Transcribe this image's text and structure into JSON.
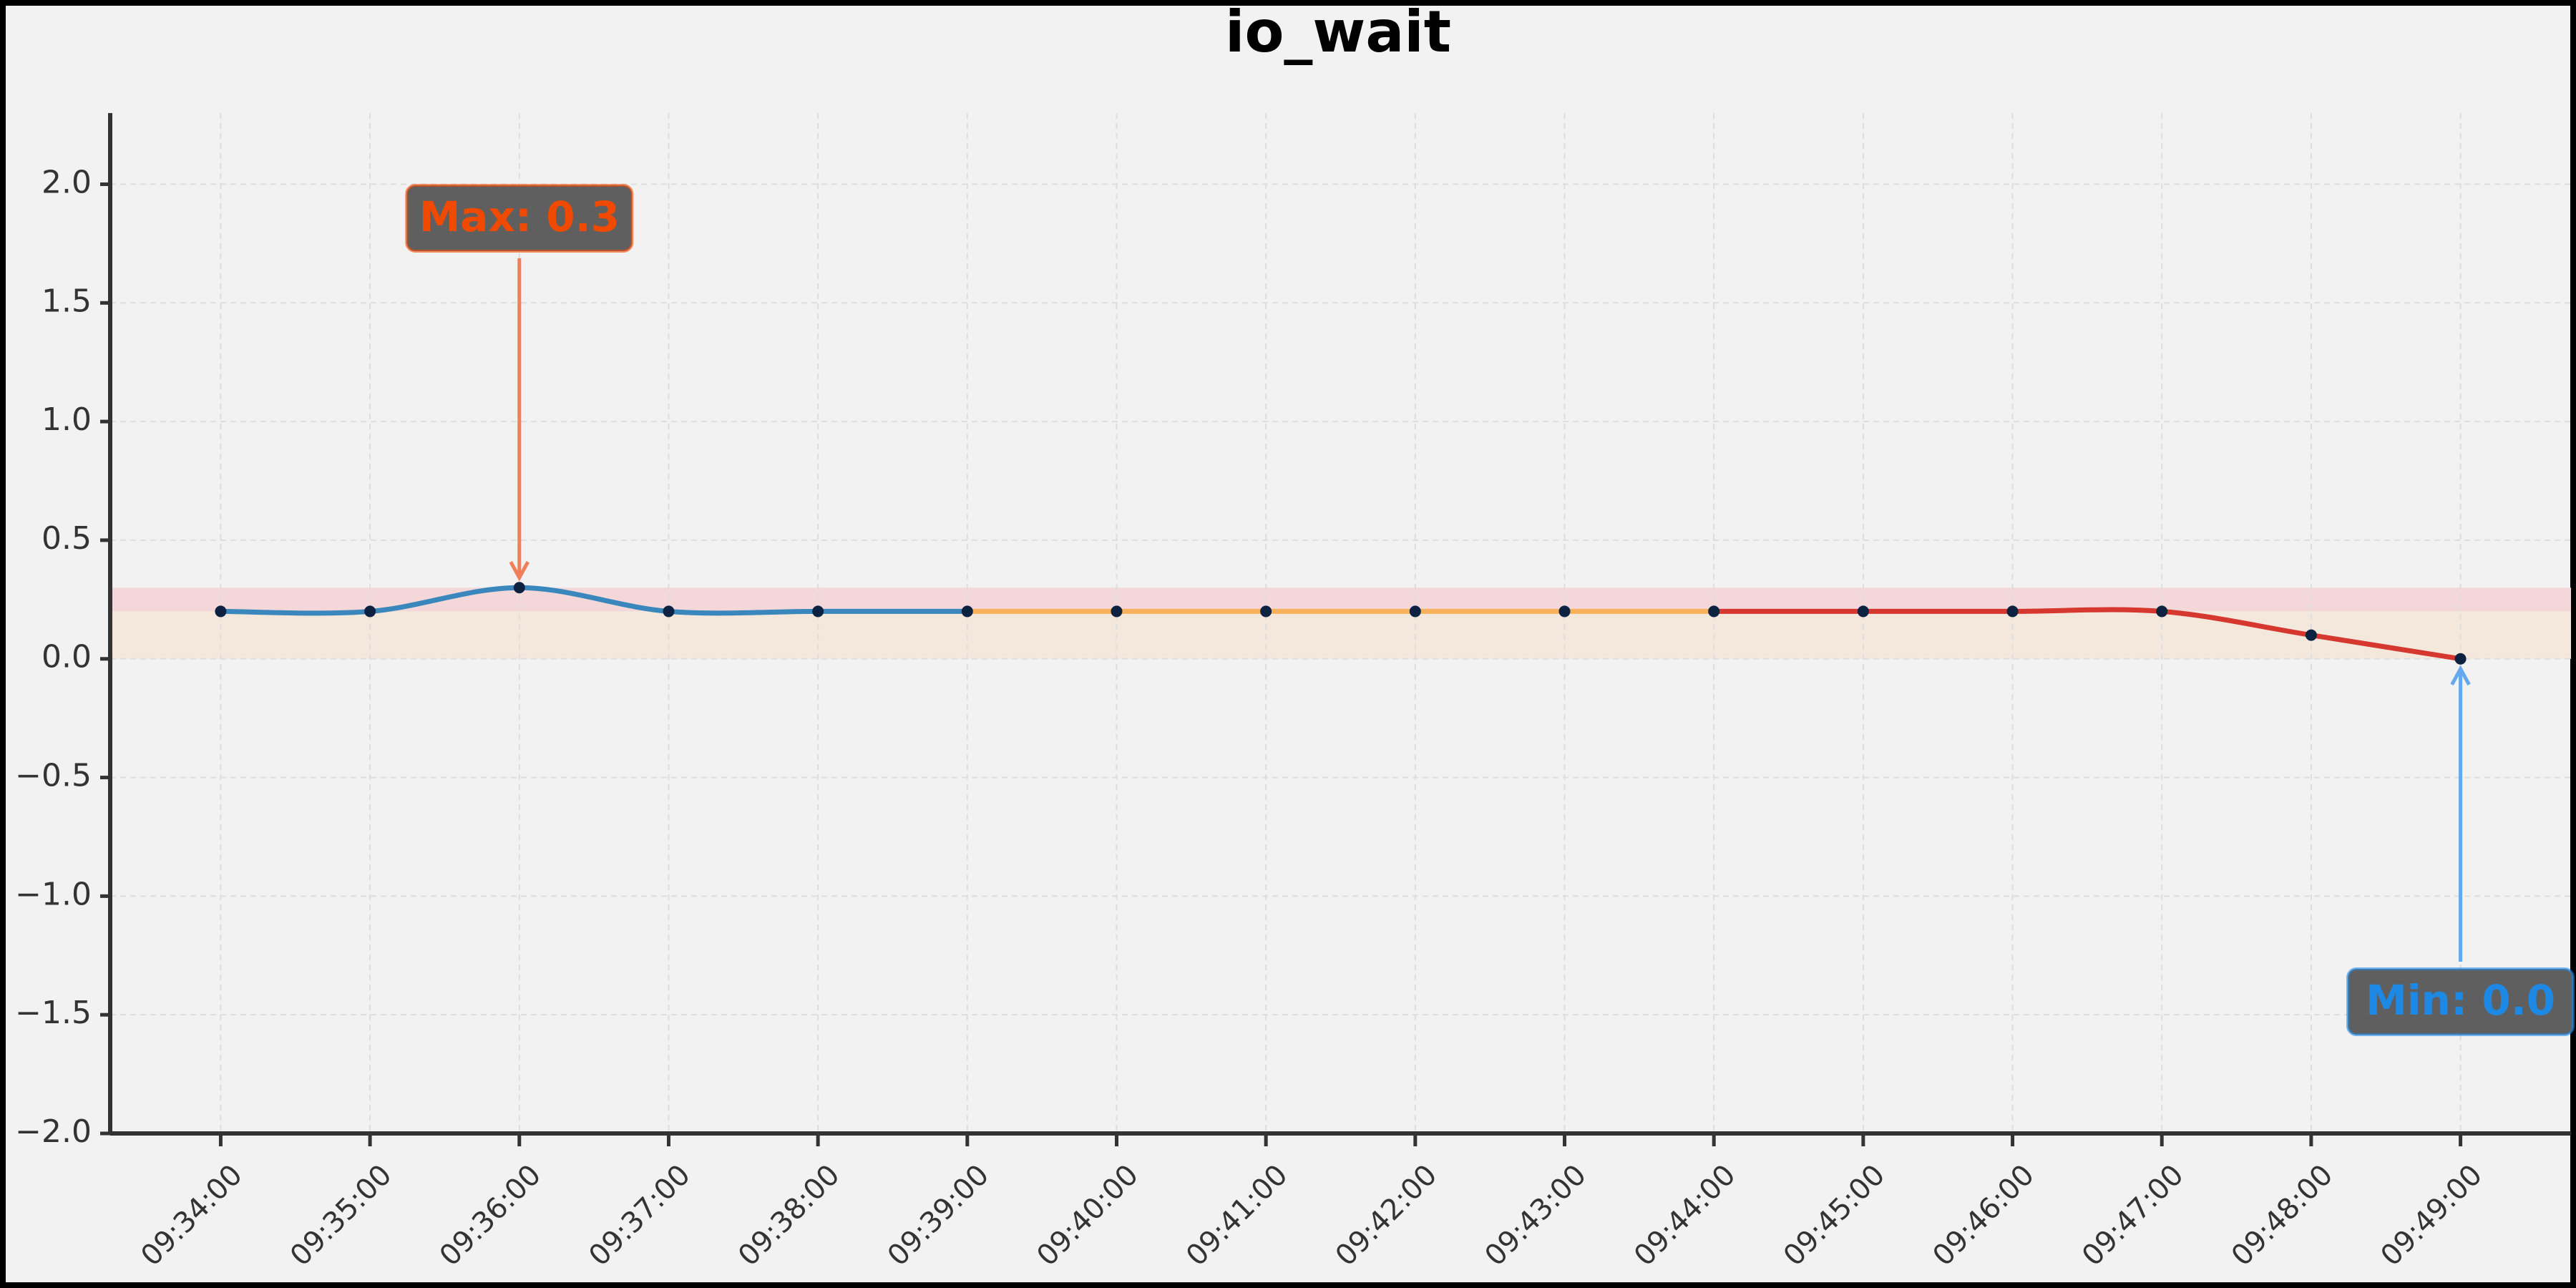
{
  "chart_data": {
    "type": "line",
    "title": "io_wait",
    "categories": [
      "09:34:00",
      "09:35:00",
      "09:36:00",
      "09:37:00",
      "09:38:00",
      "09:39:00",
      "09:40:00",
      "09:41:00",
      "09:42:00",
      "09:43:00",
      "09:44:00",
      "09:45:00",
      "09:46:00",
      "09:47:00",
      "09:48:00",
      "09:49:00"
    ],
    "series": [
      {
        "color": "#3a87bd",
        "values": [
          0.2,
          0.2,
          0.3,
          0.2,
          0.2,
          0.2,
          null,
          null,
          null,
          null,
          null,
          null,
          null,
          null,
          null,
          null
        ]
      },
      {
        "color": "#f7b05b",
        "values": [
          null,
          null,
          null,
          null,
          null,
          0.2,
          0.2,
          0.2,
          0.2,
          0.2,
          0.2,
          null,
          null,
          null,
          null,
          null
        ]
      },
      {
        "color": "#d6372e",
        "values": [
          null,
          null,
          null,
          null,
          null,
          null,
          null,
          null,
          null,
          null,
          0.2,
          0.2,
          0.2,
          0.2,
          0.1,
          0.0
        ]
      }
    ],
    "marker_color": "#0d2240",
    "bands": [
      {
        "from": 0.2,
        "to": 0.3,
        "color": "#f4d7d9"
      },
      {
        "from": 0.0,
        "to": 0.2,
        "color": "#f4e8dc"
      }
    ],
    "ylim": [
      -2.0,
      2.3
    ],
    "yticks": [
      {
        "value": -2,
        "label": "−2.0"
      },
      {
        "value": -1.5,
        "label": "−1.5"
      },
      {
        "value": -1,
        "label": "−1.0"
      },
      {
        "value": -0.5,
        "label": "−0.5"
      },
      {
        "value": 0,
        "label": "0.0"
      },
      {
        "value": 0.5,
        "label": "0.5"
      },
      {
        "value": 1,
        "label": "1.0"
      },
      {
        "value": 1.5,
        "label": "1.5"
      },
      {
        "value": 2,
        "label": "2.0"
      }
    ],
    "grid": true,
    "annotations": [
      {
        "text": "Max: 0.3",
        "color": "#f04a00",
        "arrow": "#f07f5a"
      },
      {
        "text": "Min: 0.0",
        "color": "#1e88e5",
        "arrow": "#64a8ee"
      }
    ]
  }
}
